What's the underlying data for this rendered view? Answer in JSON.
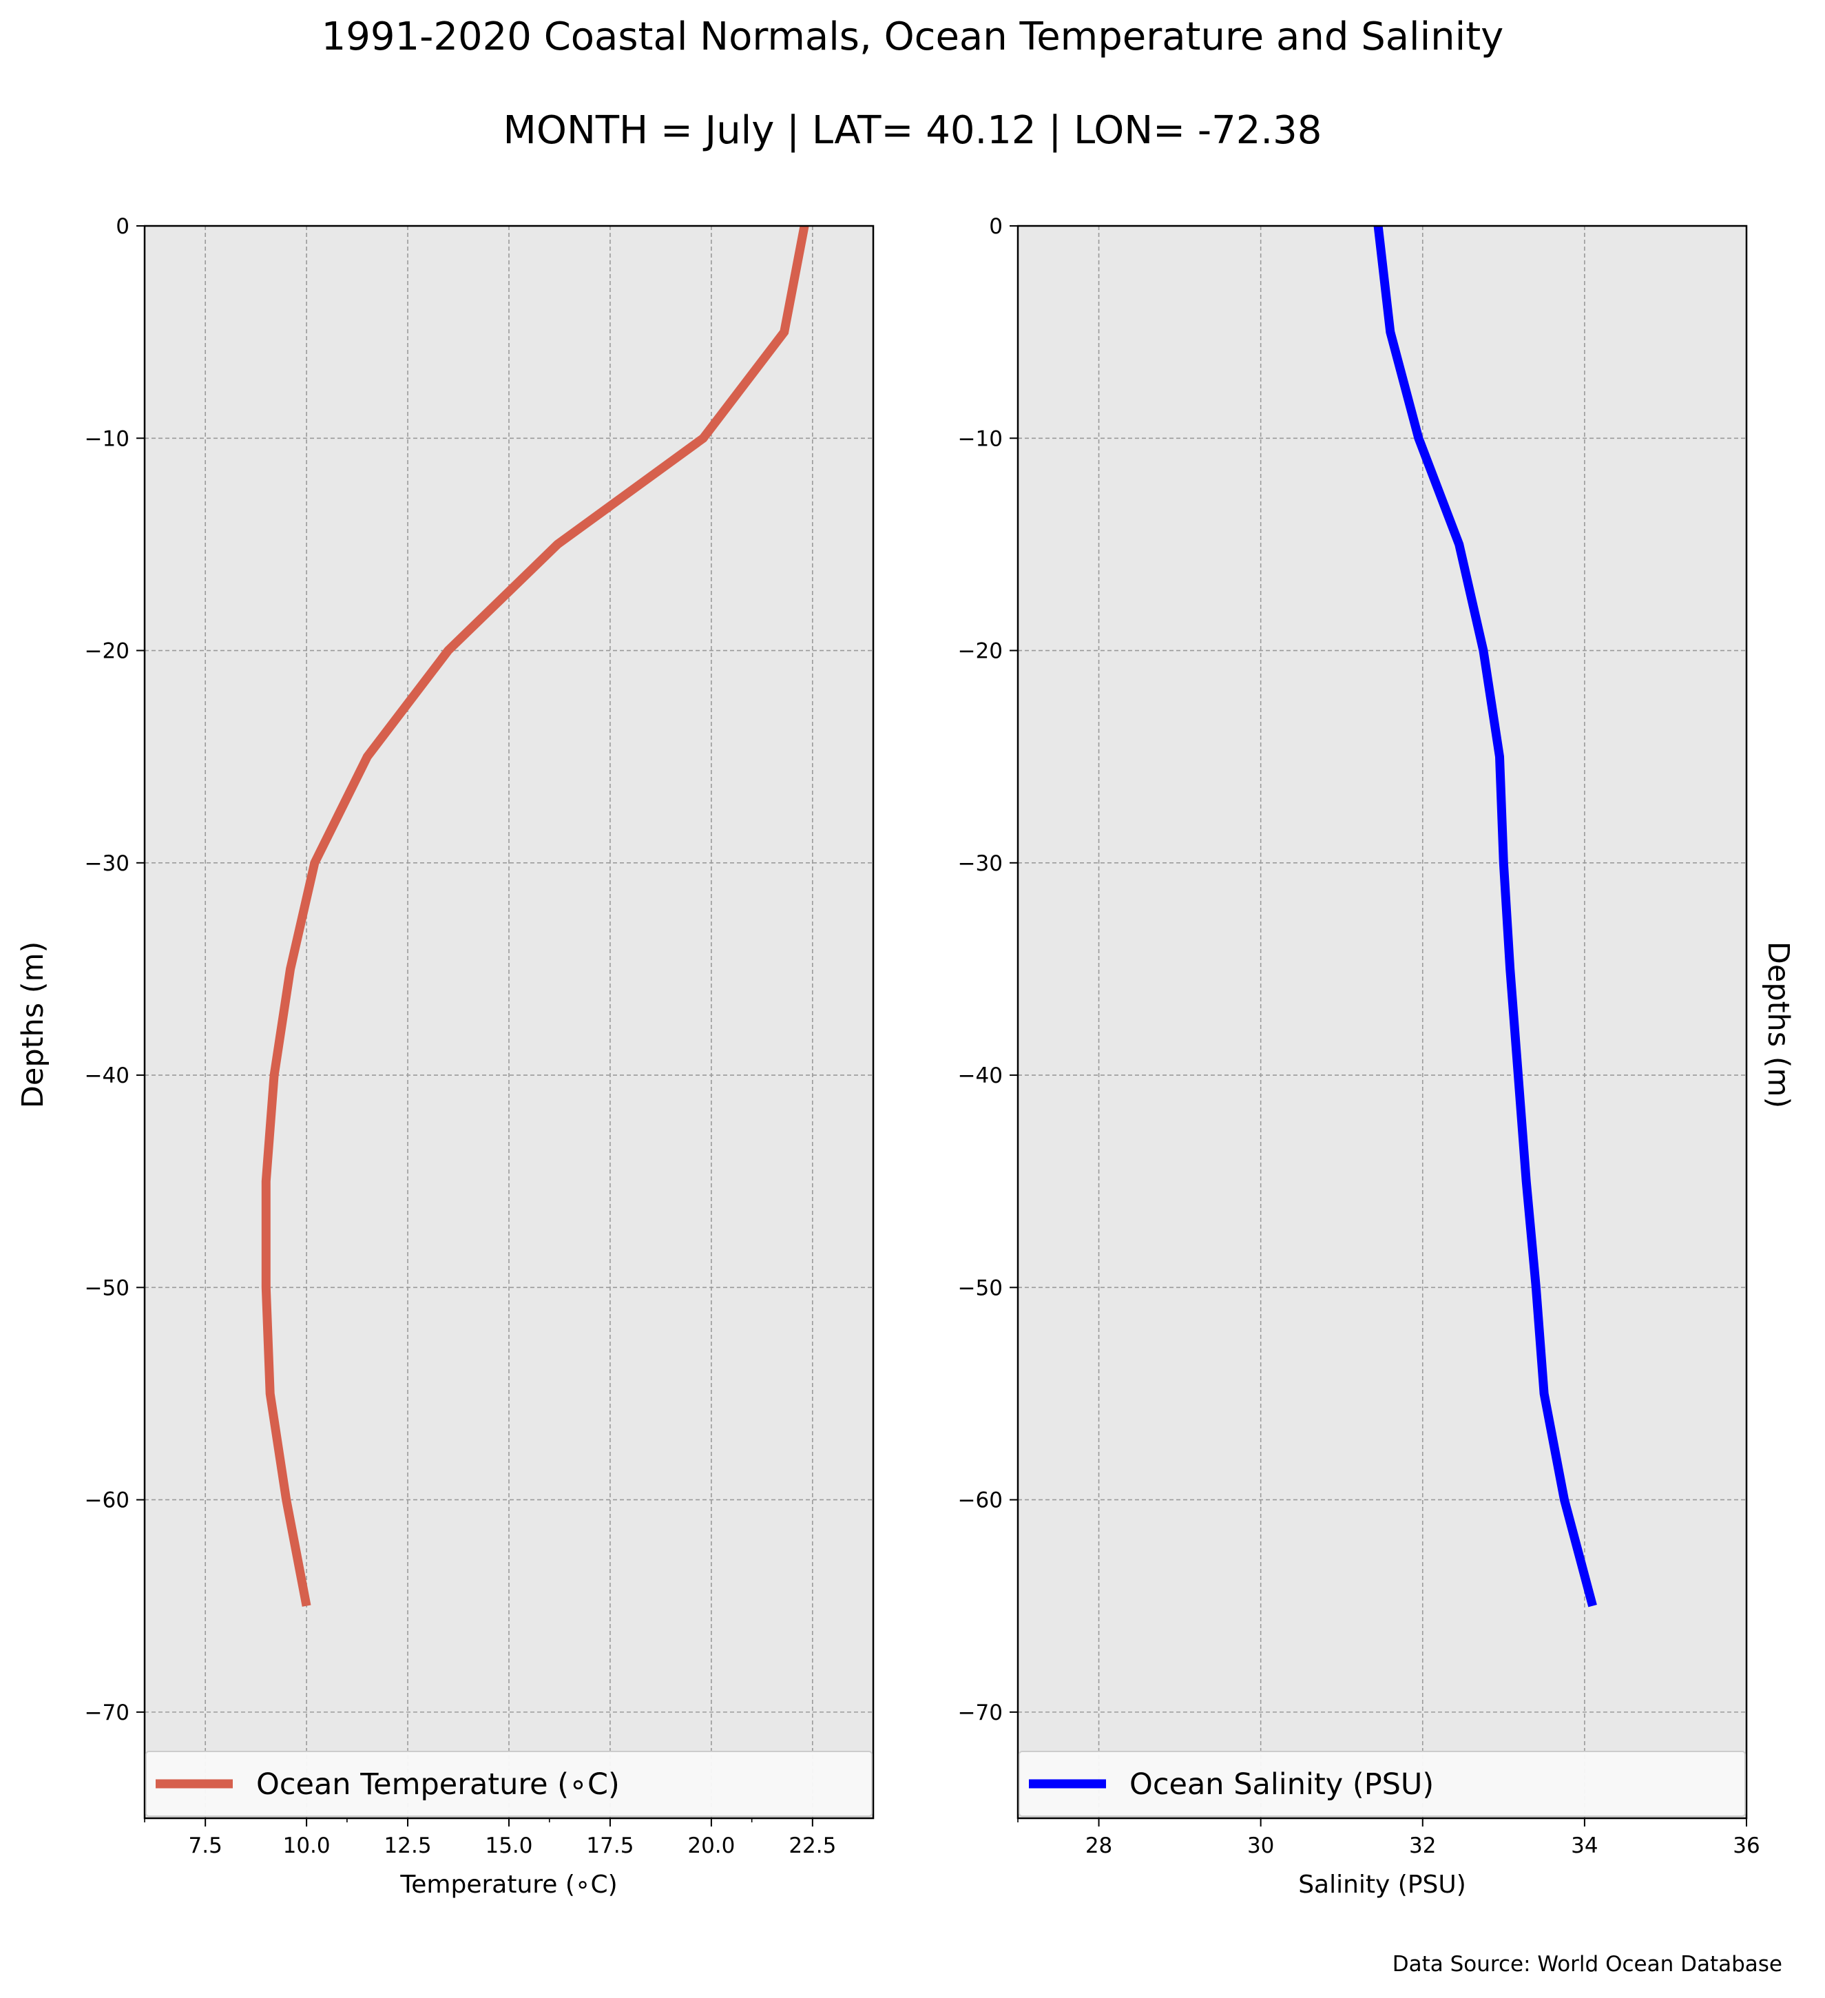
{
  "title": "1991-2020 Coastal Normals, Ocean Temperature and Salinity",
  "subtitle": "MONTH = July | LAT= 40.12 | LON= -72.38",
  "source": "Data Source: World Ocean Database",
  "chart_data": [
    {
      "type": "line",
      "orientation": "profile",
      "xlabel": "Temperature (∘C)",
      "ylabel": "Depths (m)",
      "xlim": [
        6.0,
        24.0
      ],
      "ylim": [
        -75,
        0
      ],
      "xticks": [
        7.5,
        10.0,
        12.5,
        15.0,
        17.5,
        20.0,
        22.5
      ],
      "xtick_labels": [
        "7.5",
        "10.0",
        "12.5",
        "15.0",
        "17.5",
        "20.0",
        "22.5"
      ],
      "x_minor_ticks": [
        6.0,
        11.0,
        16.0,
        21.0
      ],
      "yticks": [
        0,
        -10,
        -20,
        -30,
        -40,
        -50,
        -60,
        -70
      ],
      "ytick_labels": [
        "0",
        "−10",
        "−20",
        "−30",
        "−40",
        "−50",
        "−60",
        "−70"
      ],
      "grid": true,
      "legend_position": "bottom",
      "series": [
        {
          "name": "Ocean Temperature (∘C)",
          "color": "#d6604d",
          "x": [
            22.3,
            21.8,
            19.8,
            16.2,
            13.5,
            11.5,
            10.2,
            9.6,
            9.2,
            9.0,
            9.0,
            9.1,
            9.5,
            10.0
          ],
          "y": [
            0,
            -5,
            -10,
            -15,
            -20,
            -25,
            -30,
            -35,
            -40,
            -45,
            -50,
            -55,
            -60,
            -65
          ]
        }
      ]
    },
    {
      "type": "line",
      "orientation": "profile",
      "xlabel": "Salinity (PSU)",
      "ylabel": "Depths (m)",
      "xlim": [
        27,
        36
      ],
      "ylim": [
        -75,
        0
      ],
      "xticks": [
        28,
        30,
        32,
        34,
        36
      ],
      "xtick_labels": [
        "28",
        "30",
        "32",
        "34",
        "36"
      ],
      "x_minor_ticks": [
        27
      ],
      "yticks": [
        0,
        -10,
        -20,
        -30,
        -40,
        -50,
        -60,
        -70
      ],
      "ytick_labels": [
        "0",
        "−10",
        "−20",
        "−30",
        "−40",
        "−50",
        "−60",
        "−70"
      ],
      "grid": true,
      "legend_position": "bottom",
      "series": [
        {
          "name": "Ocean Salinity (PSU)",
          "color": "#0000ff",
          "x": [
            31.45,
            31.6,
            31.95,
            32.45,
            32.75,
            32.95,
            33.0,
            33.08,
            33.18,
            33.28,
            33.4,
            33.5,
            33.75,
            34.1
          ],
          "y": [
            0,
            -5,
            -10,
            -15,
            -20,
            -25,
            -30,
            -35,
            -40,
            -45,
            -50,
            -55,
            -60,
            -65
          ]
        }
      ]
    }
  ]
}
